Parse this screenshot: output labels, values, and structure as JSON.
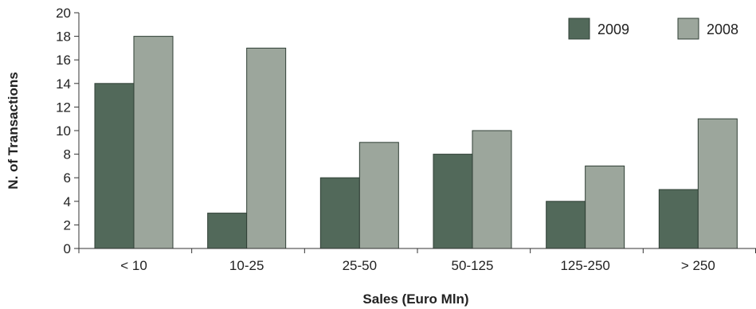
{
  "chart_data": {
    "type": "bar",
    "title": "",
    "xlabel": "Sales (Euro Mln)",
    "ylabel": "N. of Transactions",
    "ylim": [
      0,
      20
    ],
    "yticks": [
      0,
      2,
      4,
      6,
      8,
      10,
      12,
      14,
      16,
      18,
      20
    ],
    "categories": [
      "< 10",
      "10-25",
      "25-50",
      "50-125",
      "125-250",
      "> 250"
    ],
    "series": [
      {
        "name": "2009",
        "color": "#52695a",
        "values": [
          14,
          3,
          6,
          8,
          4,
          5
        ]
      },
      {
        "name": "2008",
        "color": "#9ca69c",
        "values": [
          18,
          17,
          9,
          10,
          7,
          11
        ]
      }
    ],
    "legend": "top-right",
    "grid": false
  }
}
